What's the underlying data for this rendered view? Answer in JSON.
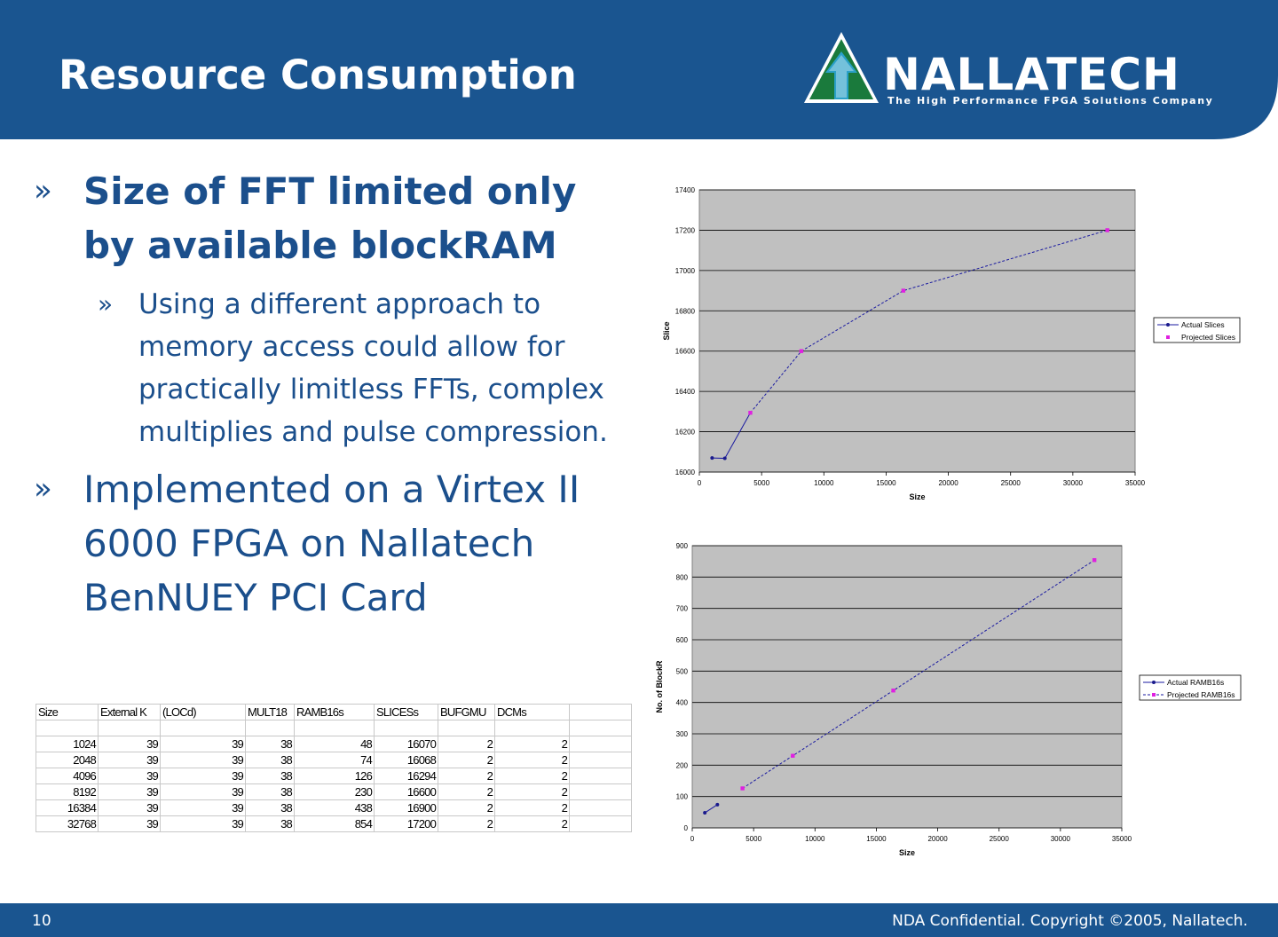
{
  "header": {
    "title": "Resource Consumption",
    "bg_color": "#1a5590",
    "logo": {
      "word": "NALLATECH",
      "tagline": "The High Performance FPGA Solutions Company",
      "colors": [
        "#1a7a3c",
        "#2aa0c8"
      ]
    }
  },
  "bullets": [
    {
      "text": "Size of FFT limited only by available blockRAM",
      "marker": "»",
      "sub": [
        {
          "text": "Using a different approach to memory access could allow for practically limitless FFTs, complex multiplies and pulse compression.",
          "marker": "»"
        }
      ]
    },
    {
      "text": "Implemented on a Virtex II 6000 FPGA on Nallatech BenNUEY PCI Card",
      "marker": "»"
    }
  ],
  "table": {
    "headers": [
      "Size",
      "External K",
      "(LOCd)",
      "MULT18",
      "RAMB16s",
      "SLICESs",
      "BUFGMU",
      "DCMs",
      ""
    ],
    "rows": [
      [
        "1024",
        "39",
        "39",
        "38",
        "48",
        "16070",
        "2",
        "2",
        ""
      ],
      [
        "2048",
        "39",
        "39",
        "38",
        "74",
        "16068",
        "2",
        "2",
        ""
      ],
      [
        "4096",
        "39",
        "39",
        "38",
        "126",
        "16294",
        "2",
        "2",
        ""
      ],
      [
        "8192",
        "39",
        "39",
        "38",
        "230",
        "16600",
        "2",
        "2",
        ""
      ],
      [
        "16384",
        "39",
        "39",
        "38",
        "438",
        "16900",
        "2",
        "2",
        ""
      ],
      [
        "32768",
        "39",
        "39",
        "38",
        "854",
        "17200",
        "2",
        "2",
        ""
      ]
    ]
  },
  "chart_data": [
    {
      "type": "line",
      "xlabel": "Size",
      "ylabel": "Slice",
      "xlim": [
        0,
        35000
      ],
      "ylim": [
        16000,
        17400
      ],
      "xticks": [
        "0",
        "5000",
        "10000",
        "15000",
        "20000",
        "25000",
        "30000",
        "35000"
      ],
      "yticks": [
        "16000",
        "16200",
        "16400",
        "16600",
        "16800",
        "17000",
        "17200",
        "17400"
      ],
      "grid": true,
      "legend": "right",
      "series": [
        {
          "name": "Actual Slices",
          "color": "#1a1a8c",
          "x": [
            1024,
            2048,
            4096
          ],
          "y": [
            16070,
            16068,
            16294
          ]
        },
        {
          "name": "Projected Slices",
          "color": "#e020e0",
          "x": [
            4096,
            8192,
            16384,
            32768
          ],
          "y": [
            16294,
            16600,
            16900,
            17200
          ]
        }
      ]
    },
    {
      "type": "line",
      "xlabel": "Size",
      "ylabel": "No. of BlockR",
      "xlim": [
        0,
        35000
      ],
      "ylim": [
        0,
        900
      ],
      "xticks": [
        "0",
        "5000",
        "10000",
        "15000",
        "20000",
        "25000",
        "30000",
        "35000"
      ],
      "yticks": [
        "0",
        "100",
        "200",
        "300",
        "400",
        "500",
        "600",
        "700",
        "800",
        "900"
      ],
      "grid": true,
      "legend": "right",
      "series": [
        {
          "name": "Actual RAMB16s",
          "color": "#1a1a8c",
          "x": [
            1024,
            2048
          ],
          "y": [
            48,
            74
          ]
        },
        {
          "name": "Projected RAMB16s",
          "color": "#e020e0",
          "x": [
            4096,
            8192,
            16384,
            32768
          ],
          "y": [
            126,
            230,
            438,
            854
          ]
        }
      ]
    }
  ],
  "footer": {
    "page": "10",
    "copyright": "NDA Confidential. Copyright ©2005, Nallatech."
  }
}
